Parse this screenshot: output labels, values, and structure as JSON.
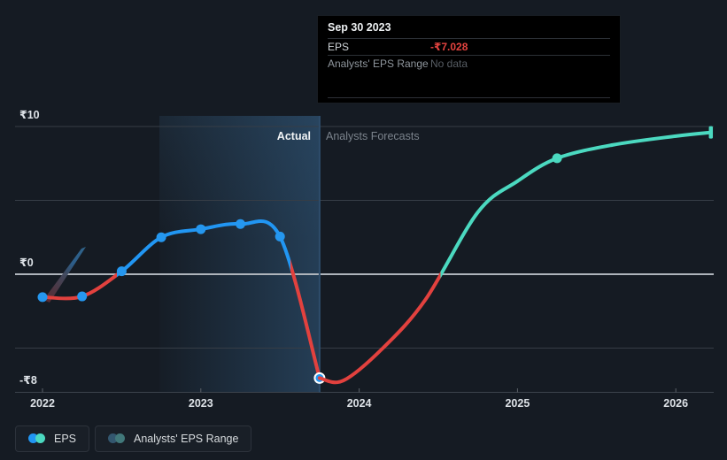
{
  "phase_labels": {
    "actual": "Actual",
    "forecast": "Analysts Forecasts"
  },
  "tooltip": {
    "title": "Sep 30 2023",
    "rows": [
      {
        "label": "EPS",
        "value": "-₹7.028",
        "value_color": "#e5433f"
      },
      {
        "label": "Analysts' EPS Range",
        "value": "No data",
        "value_color": "#575d64"
      }
    ]
  },
  "legend": [
    {
      "label": "EPS",
      "colors": [
        "#2196f3",
        "#4bd9c0"
      ]
    },
    {
      "label": "Analysts' EPS Range",
      "colors": [
        "#33576f",
        "#41787a"
      ]
    }
  ],
  "chart_data": {
    "type": "line",
    "title": "EPS actual vs analysts forecasts",
    "currency": "₹",
    "y_axis": {
      "tick_labels": [
        "₹10",
        "₹0",
        "-₹8"
      ],
      "tick_values": [
        10,
        0,
        -8
      ],
      "gridline_values": [
        10,
        5,
        0,
        -5
      ],
      "range": [
        -8,
        10.7
      ]
    },
    "x_axis": {
      "tick_labels": [
        "2022",
        "2023",
        "2024",
        "2025",
        "2026"
      ],
      "tick_values": [
        2022,
        2023,
        2024,
        2025,
        2026
      ],
      "range": [
        2021.82,
        2026.28
      ]
    },
    "divider_x": 2023.75,
    "actual_band_range": [
      2022.74,
      2023.75
    ],
    "selected_point": {
      "date": "Sep 30 2023",
      "value": -7.028,
      "x": 2023.75
    },
    "series": [
      {
        "name": "EPS (actual)",
        "kind": "actual",
        "pos_color": "#2196f3",
        "neg_color": "#e2413e",
        "dot_color": "#2597ef",
        "points": [
          {
            "x": 2022.0,
            "y": -1.55,
            "dot": true
          },
          {
            "x": 2022.25,
            "y": -1.5,
            "dot": true
          },
          {
            "x": 2022.5,
            "y": 0.2,
            "dot": true
          },
          {
            "x": 2022.75,
            "y": 2.5,
            "dot": true
          },
          {
            "x": 2023.0,
            "y": 3.05,
            "dot": true
          },
          {
            "x": 2023.25,
            "y": 3.4,
            "dot": true
          },
          {
            "x": 2023.5,
            "y": 2.55,
            "dot": true
          },
          {
            "x": 2023.75,
            "y": -7.028,
            "dot": true,
            "selected": true
          }
        ]
      },
      {
        "name": "EPS (analysts forecast)",
        "kind": "forecast",
        "pos_color": "#4bd9c0",
        "neg_color": "#e2413e",
        "dot_color": "#4bd9c0",
        "end_cap": true,
        "points": [
          {
            "x": 2023.75,
            "y": -7.028
          },
          {
            "x": 2023.9,
            "y": -7.2
          },
          {
            "x": 2024.15,
            "y": -5.0
          },
          {
            "x": 2024.42,
            "y": -1.7
          },
          {
            "x": 2024.75,
            "y": 4.2
          },
          {
            "x": 2025.0,
            "y": 6.3
          },
          {
            "x": 2025.25,
            "y": 7.85,
            "dot": true
          },
          {
            "x": 2025.6,
            "y": 8.75
          },
          {
            "x": 2026.0,
            "y": 9.35
          },
          {
            "x": 2026.22,
            "y": 9.6
          }
        ]
      }
    ]
  }
}
